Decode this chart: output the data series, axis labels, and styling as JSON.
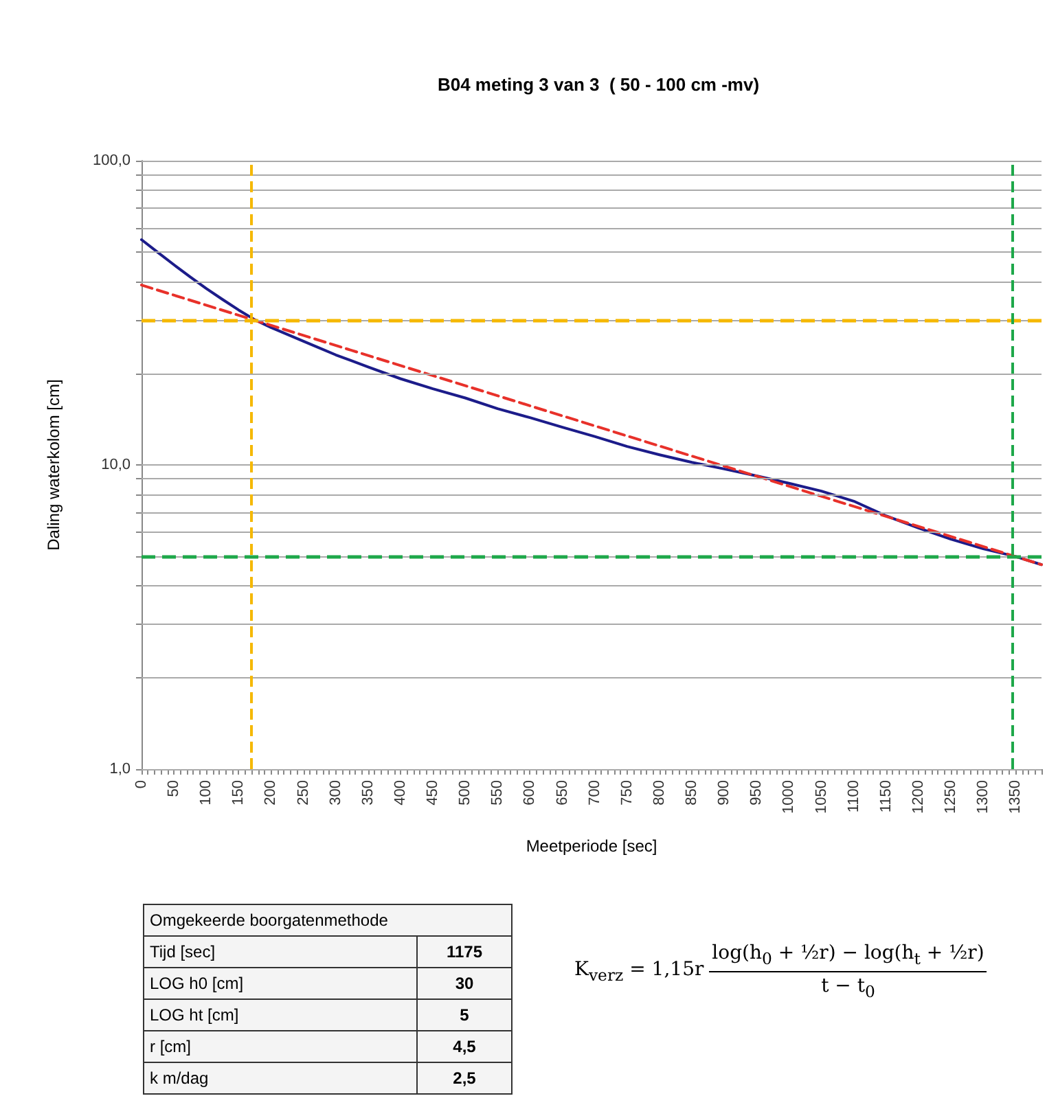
{
  "chart_data": {
    "type": "line",
    "title": "B04 meting 3 van 3  ( 50 - 100 cm -mv)",
    "xlabel": "Meetperiode [sec]",
    "ylabel": "Daling waterkolom [cm]",
    "log": "y",
    "grid": "y",
    "marker": "none",
    "xlim": [
      0,
      1390
    ],
    "xticks": [
      0,
      {
        "value": 10,
        "label": null
      },
      {
        "value": 20,
        "label": null
      },
      {
        "value": 30,
        "label": null
      },
      {
        "value": 40,
        "label": null
      },
      50,
      {
        "value": 60,
        "label": null
      },
      {
        "value": 70,
        "label": null
      },
      {
        "value": 80,
        "label": null
      },
      {
        "value": 90,
        "label": null
      },
      100,
      {
        "value": 110,
        "label": null
      },
      {
        "value": 120,
        "label": null
      },
      {
        "value": 130,
        "label": null
      },
      {
        "value": 140,
        "label": null
      },
      150,
      {
        "value": 160,
        "label": null
      },
      {
        "value": 170,
        "label": null
      },
      {
        "value": 180,
        "label": null
      },
      {
        "value": 190,
        "label": null
      },
      200,
      {
        "value": 210,
        "label": null
      },
      {
        "value": 220,
        "label": null
      },
      {
        "value": 230,
        "label": null
      },
      {
        "value": 240,
        "label": null
      },
      250,
      {
        "value": 260,
        "label": null
      },
      {
        "value": 270,
        "label": null
      },
      {
        "value": 280,
        "label": null
      },
      {
        "value": 290,
        "label": null
      },
      300,
      {
        "value": 310,
        "label": null
      },
      {
        "value": 320,
        "label": null
      },
      {
        "value": 330,
        "label": null
      },
      {
        "value": 340,
        "label": null
      },
      350,
      {
        "value": 360,
        "label": null
      },
      {
        "value": 370,
        "label": null
      },
      {
        "value": 380,
        "label": null
      },
      {
        "value": 390,
        "label": null
      },
      400,
      {
        "value": 410,
        "label": null
      },
      {
        "value": 420,
        "label": null
      },
      {
        "value": 430,
        "label": null
      },
      {
        "value": 440,
        "label": null
      },
      450,
      {
        "value": 460,
        "label": null
      },
      {
        "value": 470,
        "label": null
      },
      {
        "value": 480,
        "label": null
      },
      {
        "value": 490,
        "label": null
      },
      500,
      {
        "value": 510,
        "label": null
      },
      {
        "value": 520,
        "label": null
      },
      {
        "value": 530,
        "label": null
      },
      {
        "value": 540,
        "label": null
      },
      550,
      {
        "value": 560,
        "label": null
      },
      {
        "value": 570,
        "label": null
      },
      {
        "value": 580,
        "label": null
      },
      {
        "value": 590,
        "label": null
      },
      600,
      {
        "value": 610,
        "label": null
      },
      {
        "value": 620,
        "label": null
      },
      {
        "value": 630,
        "label": null
      },
      {
        "value": 640,
        "label": null
      },
      650,
      {
        "value": 660,
        "label": null
      },
      {
        "value": 670,
        "label": null
      },
      {
        "value": 680,
        "label": null
      },
      {
        "value": 690,
        "label": null
      },
      700,
      {
        "value": 710,
        "label": null
      },
      {
        "value": 720,
        "label": null
      },
      {
        "value": 730,
        "label": null
      },
      {
        "value": 740,
        "label": null
      },
      750,
      {
        "value": 760,
        "label": null
      },
      {
        "value": 770,
        "label": null
      },
      {
        "value": 780,
        "label": null
      },
      {
        "value": 790,
        "label": null
      },
      800,
      {
        "value": 810,
        "label": null
      },
      {
        "value": 820,
        "label": null
      },
      {
        "value": 830,
        "label": null
      },
      {
        "value": 840,
        "label": null
      },
      850,
      {
        "value": 860,
        "label": null
      },
      {
        "value": 870,
        "label": null
      },
      {
        "value": 880,
        "label": null
      },
      {
        "value": 890,
        "label": null
      },
      900,
      {
        "value": 910,
        "label": null
      },
      {
        "value": 920,
        "label": null
      },
      {
        "value": 930,
        "label": null
      },
      {
        "value": 940,
        "label": null
      },
      950,
      {
        "value": 960,
        "label": null
      },
      {
        "value": 970,
        "label": null
      },
      {
        "value": 980,
        "label": null
      },
      {
        "value": 990,
        "label": null
      },
      1000,
      {
        "value": 1010,
        "label": null
      },
      {
        "value": 1020,
        "label": null
      },
      {
        "value": 1030,
        "label": null
      },
      {
        "value": 1040,
        "label": null
      },
      1050,
      {
        "value": 1060,
        "label": null
      },
      {
        "value": 1070,
        "label": null
      },
      {
        "value": 1080,
        "label": null
      },
      {
        "value": 1090,
        "label": null
      },
      1100,
      {
        "value": 1110,
        "label": null
      },
      {
        "value": 1120,
        "label": null
      },
      {
        "value": 1130,
        "label": null
      },
      {
        "value": 1140,
        "label": null
      },
      1150,
      {
        "value": 1160,
        "label": null
      },
      {
        "value": 1170,
        "label": null
      },
      {
        "value": 1180,
        "label": null
      },
      {
        "value": 1190,
        "label": null
      },
      1200,
      {
        "value": 1210,
        "label": null
      },
      {
        "value": 1220,
        "label": null
      },
      {
        "value": 1230,
        "label": null
      },
      {
        "value": 1240,
        "label": null
      },
      1250,
      {
        "value": 1260,
        "label": null
      },
      {
        "value": 1270,
        "label": null
      },
      {
        "value": 1280,
        "label": null
      },
      {
        "value": 1290,
        "label": null
      },
      1300,
      {
        "value": 1310,
        "label": null
      },
      {
        "value": 1320,
        "label": null
      },
      {
        "value": 1330,
        "label": null
      },
      {
        "value": 1340,
        "label": null
      },
      1350,
      {
        "value": 1360,
        "label": null
      },
      {
        "value": 1370,
        "label": null
      },
      {
        "value": 1380,
        "label": null
      },
      {
        "value": 1390,
        "label": null
      }
    ],
    "ylim": [
      1,
      100
    ],
    "yticks": [
      {
        "value": 1,
        "label": "1,0"
      },
      {
        "value": 2,
        "label": null
      },
      {
        "value": 3,
        "label": null
      },
      {
        "value": 4,
        "label": null
      },
      {
        "value": 5,
        "label": null
      },
      {
        "value": 6,
        "label": null
      },
      {
        "value": 7,
        "label": null
      },
      {
        "value": 8,
        "label": null
      },
      {
        "value": 9,
        "label": null
      },
      {
        "value": 10,
        "label": "10,0"
      },
      {
        "value": 20,
        "label": null
      },
      {
        "value": 30,
        "label": null
      },
      {
        "value": 40,
        "label": null
      },
      {
        "value": 50,
        "label": null
      },
      {
        "value": 60,
        "label": null
      },
      {
        "value": 70,
        "label": null
      },
      {
        "value": 80,
        "label": null
      },
      {
        "value": 90,
        "label": null
      },
      {
        "value": 100,
        "label": "100,0"
      }
    ],
    "series": [
      {
        "color": "#1c1c8a",
        "line_style": "solid",
        "x": [
          0,
          25,
          50,
          75,
          100,
          125,
          150,
          175,
          200,
          250,
          300,
          350,
          400,
          450,
          500,
          550,
          600,
          650,
          700,
          750,
          800,
          850,
          900,
          950,
          1000,
          1050,
          1100,
          1150,
          1200,
          1250,
          1300,
          1350,
          1390
        ],
        "values": [
          55,
          50,
          45.5,
          41.5,
          38,
          35,
          32.3,
          30,
          28.3,
          25.5,
          23,
          21,
          19.2,
          17.8,
          16.6,
          15.3,
          14.3,
          13.3,
          12.4,
          11.5,
          10.8,
          10.2,
          9.7,
          9.2,
          8.7,
          8.2,
          7.6,
          6.8,
          6.2,
          5.7,
          5.3,
          5.0,
          4.7
        ]
      },
      {
        "color": "#e8312a",
        "line_style": "dashed",
        "x": [
          0,
          1390
        ],
        "values": [
          39,
          4.7
        ]
      }
    ],
    "ref_lines": [
      {
        "axis": "y",
        "value": 30,
        "color": "#f5b800",
        "line_style": "dashed"
      },
      {
        "axis": "x",
        "value": 170,
        "color": "#f5b800",
        "line_style": "dashed"
      },
      {
        "axis": "y",
        "value": 5,
        "color": "#1ea84a",
        "line_style": "dashed"
      },
      {
        "axis": "x",
        "value": 1345,
        "color": "#1ea84a",
        "line_style": "dashed"
      }
    ],
    "annotations": [
      "Omgekeerde boorgatenmethode",
      "Tijd [sec]",
      "1175",
      "LOG h0 [cm]",
      "30",
      "LOG ht [cm]",
      "5",
      "r [cm]",
      "4,5",
      "k m/dag",
      "2,5",
      "K$_{verz}$ = 1,15r",
      "log(h$_{0}$ + ½r) − log(h$_{t}$ + ½r)",
      "t − t$_{0}$"
    ]
  }
}
